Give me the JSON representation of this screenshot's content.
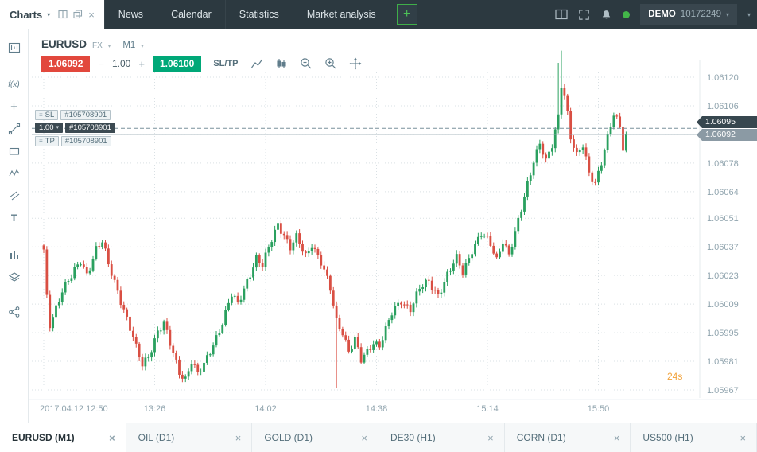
{
  "app": {
    "charts_menu_label": "Charts",
    "top_tabs": [
      "News",
      "Calendar",
      "Statistics",
      "Market analysis"
    ],
    "add_tab_label": "+",
    "account_mode": "DEMO",
    "account_number": "10172249"
  },
  "icons": {
    "caret": "▾",
    "close": "×",
    "handle": "≡",
    "fx_tool": "f(x)",
    "plus_tool": "+",
    "text_tool": "T"
  },
  "toolbar": {
    "symbol": "EURUSD",
    "market_label": "FX",
    "timeframe": "M1",
    "sell_price": "1.06092",
    "minus_label": "−",
    "volume": "1.00",
    "plus_label": "+",
    "buy_price": "1.06100",
    "sltp_label": "SL/TP"
  },
  "order": {
    "sl_label": "SL",
    "tp_label": "TP",
    "volume_label": "1.00",
    "ticket": "#105708901",
    "order_price_tag": "1.06095",
    "current_price_tag": "1.06092"
  },
  "countdown": "24s",
  "bottom_tabs": [
    {
      "label": "EURUSD (M1)",
      "active": true
    },
    {
      "label": "OIL (D1)",
      "active": false
    },
    {
      "label": "GOLD (D1)",
      "active": false
    },
    {
      "label": "DE30 (H1)",
      "active": false
    },
    {
      "label": "CORN (D1)",
      "active": false
    },
    {
      "label": "US500 (H1)",
      "active": false
    }
  ],
  "chart_data": {
    "type": "candlestick",
    "symbol": "EURUSD",
    "timeframe": "M1",
    "date": "2017.04.12",
    "y_axis_labels": [
      "1.06120",
      "1.06106",
      "1.06092",
      "1.06078",
      "1.06064",
      "1.06051",
      "1.06037",
      "1.06023",
      "1.06009",
      "1.05995",
      "1.05981",
      "1.05967"
    ],
    "x_axis_labels": [
      "2017.04.12 12:50",
      "13:26",
      "14:02",
      "14:38",
      "15:14",
      "15:50"
    ],
    "minutes_per_x_label": 36,
    "price_max": 1.0612,
    "price_min": 1.05967,
    "current_price": 1.06092,
    "order_price": 1.06095,
    "candle_count": 190,
    "waypoints": [
      [
        0,
        1.06034
      ],
      [
        1,
        1.06012
      ],
      [
        2,
        1.05999
      ],
      [
        4,
        1.06008
      ],
      [
        6,
        1.06016
      ],
      [
        9,
        1.06022
      ],
      [
        12,
        1.0603
      ],
      [
        14,
        1.06024
      ],
      [
        17,
        1.06036
      ],
      [
        19,
        1.06039
      ],
      [
        21,
        1.06028
      ],
      [
        24,
        1.06016
      ],
      [
        27,
        1.06002
      ],
      [
        30,
        1.05987
      ],
      [
        32,
        1.05979
      ],
      [
        34,
        1.05984
      ],
      [
        37,
        1.05996
      ],
      [
        39,
        1.05999
      ],
      [
        41,
        1.05989
      ],
      [
        44,
        1.05976
      ],
      [
        46,
        1.05973
      ],
      [
        48,
        1.05981
      ],
      [
        50,
        1.05974
      ],
      [
        52,
        1.05979
      ],
      [
        55,
        1.0599
      ],
      [
        58,
        1.06
      ],
      [
        61,
        1.06013
      ],
      [
        63,
        1.06009
      ],
      [
        66,
        1.06021
      ],
      [
        69,
        1.06031
      ],
      [
        71,
        1.06027
      ],
      [
        74,
        1.06041
      ],
      [
        76,
        1.06049
      ],
      [
        78,
        1.06043
      ],
      [
        80,
        1.06036
      ],
      [
        82,
        1.06041
      ],
      [
        85,
        1.06033
      ],
      [
        87,
        1.06039
      ],
      [
        90,
        1.06029
      ],
      [
        93,
        1.06016
      ],
      [
        95,
        1.06001
      ],
      [
        97,
        1.05996
      ],
      [
        99,
        1.05986
      ],
      [
        101,
        1.05991
      ],
      [
        103,
        1.05981
      ],
      [
        105,
        1.05986
      ],
      [
        107,
        1.05991
      ],
      [
        109,
        1.05989
      ],
      [
        111,
        1.05996
      ],
      [
        113,
        1.06004
      ],
      [
        116,
        1.06011
      ],
      [
        119,
        1.06007
      ],
      [
        122,
        1.06016
      ],
      [
        125,
        1.0602
      ],
      [
        128,
        1.06014
      ],
      [
        131,
        1.06023
      ],
      [
        134,
        1.06031
      ],
      [
        136,
        1.06025
      ],
      [
        139,
        1.06036
      ],
      [
        142,
        1.06043
      ],
      [
        145,
        1.06038
      ],
      [
        147,
        1.06031
      ],
      [
        149,
        1.06041
      ],
      [
        151,
        1.06033
      ],
      [
        153,
        1.06043
      ],
      [
        155,
        1.06055
      ],
      [
        157,
        1.06068
      ],
      [
        159,
        1.0608
      ],
      [
        161,
        1.06088
      ],
      [
        163,
        1.06078
      ],
      [
        165,
        1.06086
      ],
      [
        167,
        1.06101
      ],
      [
        168,
        1.06117
      ],
      [
        169,
        1.06112
      ],
      [
        170,
        1.06103
      ],
      [
        171,
        1.06091
      ],
      [
        173,
        1.06081
      ],
      [
        175,
        1.06086
      ],
      [
        177,
        1.06073
      ],
      [
        179,
        1.06069
      ],
      [
        181,
        1.06079
      ],
      [
        183,
        1.0609
      ],
      [
        185,
        1.06101
      ],
      [
        187,
        1.06096
      ],
      [
        188,
        1.06086
      ],
      [
        189,
        1.06092
      ]
    ],
    "spikes": [
      {
        "m": 95,
        "low": 1.05968
      },
      {
        "m": 167,
        "high": 1.06127
      },
      {
        "m": 168,
        "high": 1.06133
      }
    ],
    "colors": {
      "up": "#2aa05f",
      "down": "#d94f43",
      "grid": "#d9e0e4",
      "axis_text": "#90a4ae",
      "current_line": "#90a4ae",
      "order_line": "#78909c",
      "countdown": "#f2a33c"
    }
  }
}
